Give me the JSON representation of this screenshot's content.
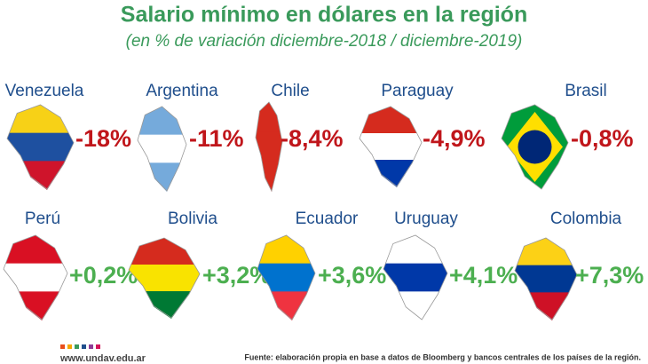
{
  "header": {
    "title": "Salario mínimo en dólares en la región",
    "subtitle": "(en % de variación diciembre-2018 / diciembre-2019)"
  },
  "items": [
    {
      "country": "Venezuela",
      "change": "-18%"
    },
    {
      "country": "Argentina",
      "change": "-11%"
    },
    {
      "country": "Chile",
      "change": "-8,4%"
    },
    {
      "country": "Paraguay",
      "change": "-4,9%"
    },
    {
      "country": "Brasil",
      "change": "-0,8%"
    },
    {
      "country": "Perú",
      "change": "+0,2%"
    },
    {
      "country": "Bolivia",
      "change": "+3,2%"
    },
    {
      "country": "Ecuador",
      "change": "+3,6%"
    },
    {
      "country": "Uruguay",
      "change": "+4,1%"
    },
    {
      "country": "Colombia",
      "change": "+7,3%"
    }
  ],
  "footer": {
    "site": "www.undav.edu.ar",
    "source": "Fuente: elaboración propia en base a datos de Bloomberg y bancos centrales de los países de la región."
  }
}
